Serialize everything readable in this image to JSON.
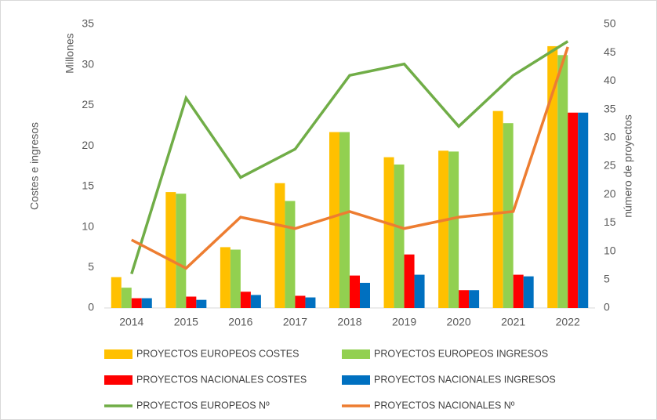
{
  "chart_data": {
    "type": "bar",
    "ylabel": "Costes e ingresos",
    "yunit": "Millones",
    "y2label": "número de proyectos",
    "categories": [
      "2014",
      "2015",
      "2016",
      "2017",
      "2018",
      "2019",
      "2020",
      "2021",
      "2022"
    ],
    "series": [
      {
        "name": "PROYECTOS EUROPEOS COSTES",
        "type": "bar",
        "color": "#ffc000",
        "values": [
          3.8,
          14.3,
          7.5,
          15.4,
          21.7,
          18.6,
          19.4,
          24.3,
          32.3
        ]
      },
      {
        "name": "PROYECTOS EUROPEOS INGRESOS",
        "type": "bar",
        "color": "#92d050",
        "values": [
          2.5,
          14.1,
          7.2,
          13.2,
          21.7,
          17.7,
          19.3,
          22.8,
          31.2
        ]
      },
      {
        "name": "PROYECTOS NACIONALES COSTES",
        "type": "bar",
        "color": "#ff0000",
        "values": [
          1.2,
          1.4,
          2.0,
          1.5,
          4.0,
          6.6,
          2.2,
          4.1,
          24.1
        ]
      },
      {
        "name": "PROYECTOS NACIONALES INGRESOS",
        "type": "bar",
        "color": "#0070c0",
        "values": [
          1.2,
          1.0,
          1.6,
          1.3,
          3.1,
          4.1,
          2.2,
          3.9,
          24.1
        ]
      },
      {
        "name": "PROYECTOS EUROPEOS Nº",
        "type": "line",
        "axis": "y2",
        "color": "#70ad47",
        "values": [
          6,
          37,
          23,
          28,
          41,
          43,
          32,
          41,
          47
        ]
      },
      {
        "name": "PROYECTOS NACIONALES Nº",
        "type": "line",
        "axis": "y2",
        "color": "#ed7d31",
        "values": [
          12,
          7,
          16,
          14,
          17,
          14,
          16,
          17,
          46
        ]
      }
    ],
    "ylim": [
      0,
      35
    ],
    "yticks": [
      0,
      5,
      10,
      15,
      20,
      25,
      30,
      35
    ],
    "y2lim": [
      0,
      50
    ],
    "y2ticks": [
      0,
      5,
      10,
      15,
      20,
      25,
      30,
      35,
      40,
      45,
      50
    ],
    "grid": false,
    "legend": "bottom"
  }
}
